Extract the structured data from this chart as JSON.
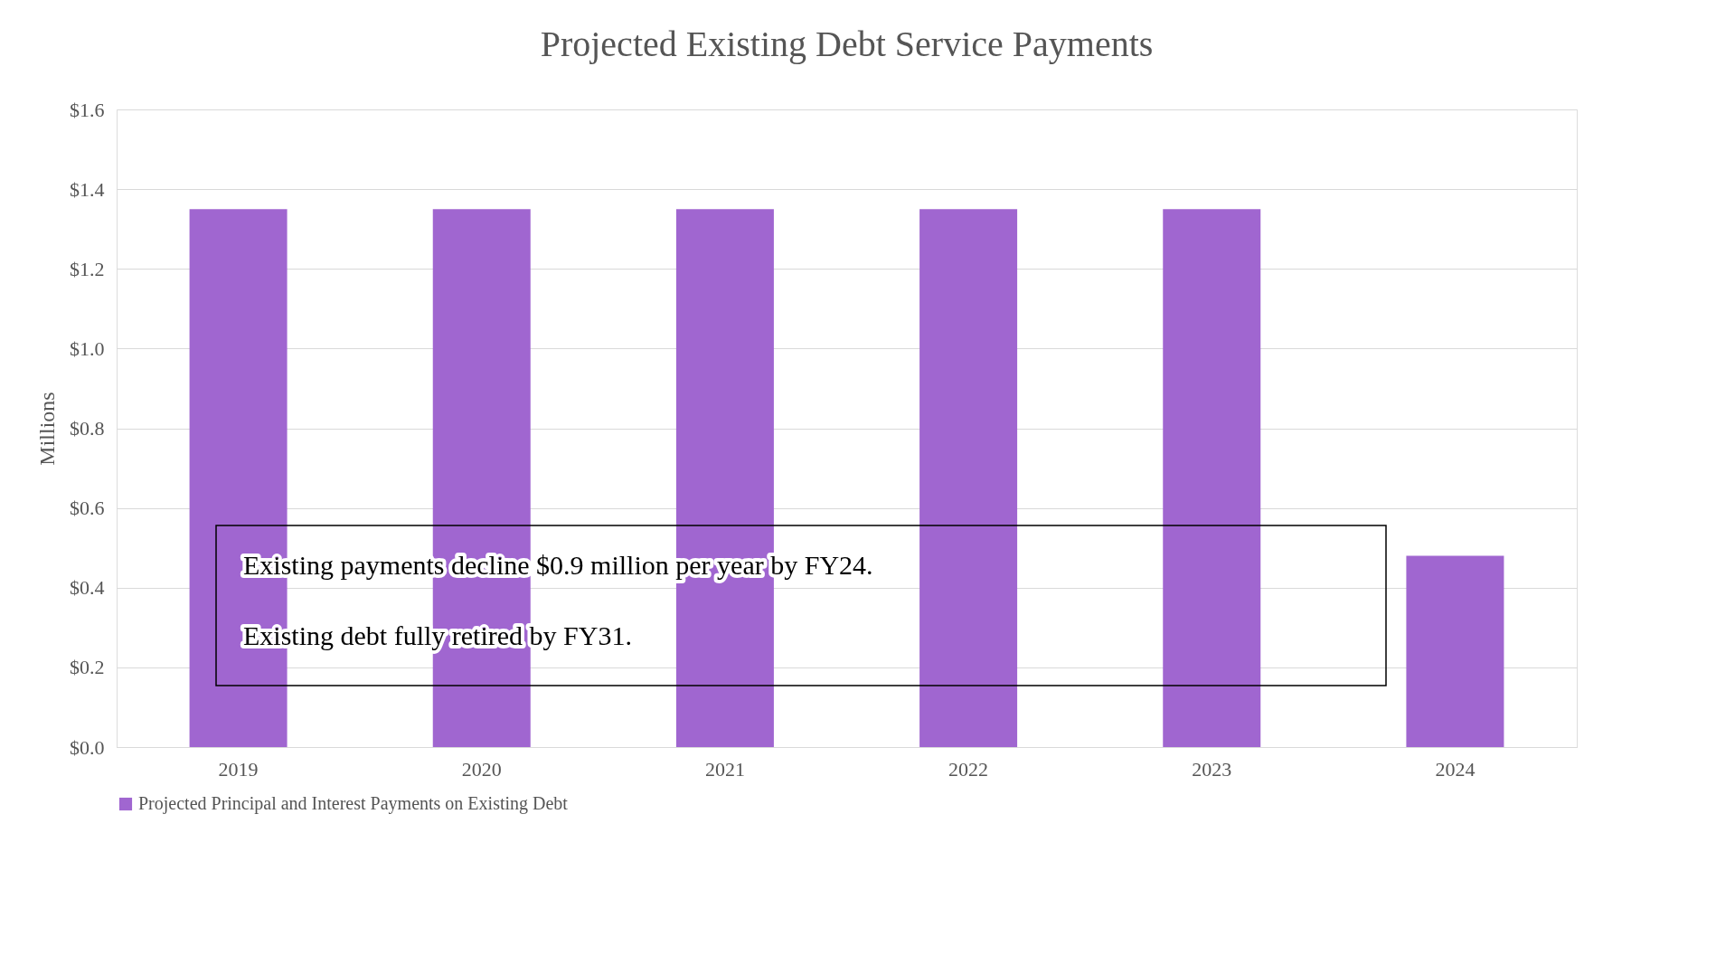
{
  "chart_data": {
    "type": "bar",
    "title": "Projected Existing Debt Service Payments",
    "ylabel": "Millions",
    "categories": [
      "2019",
      "2020",
      "2021",
      "2022",
      "2023",
      "2024"
    ],
    "series": [
      {
        "name": "Projected Principal and Interest Payments on Existing Debt",
        "color": "#a066d0",
        "values": [
          1.35,
          1.35,
          1.35,
          1.35,
          1.35,
          0.48
        ]
      }
    ],
    "ylim": [
      0,
      1.6
    ],
    "yticks": [
      {
        "value": 0,
        "label": "$0.0"
      },
      {
        "value": 0.2,
        "label": "$0.2"
      },
      {
        "value": 0.4,
        "label": "$0.4"
      },
      {
        "value": 0.6,
        "label": "$0.6"
      },
      {
        "value": 0.8,
        "label": "$0.8"
      },
      {
        "value": 1.0,
        "label": "$1.0"
      },
      {
        "value": 1.2,
        "label": "$1.2"
      },
      {
        "value": 1.4,
        "label": "$1.4"
      },
      {
        "value": 1.6,
        "label": "$1.6"
      }
    ],
    "annotations": [
      "Existing payments decline $0.9 million per year by FY24.",
      "Existing debt fully retired by FY31."
    ],
    "grid": "y",
    "legend": "bottom"
  }
}
